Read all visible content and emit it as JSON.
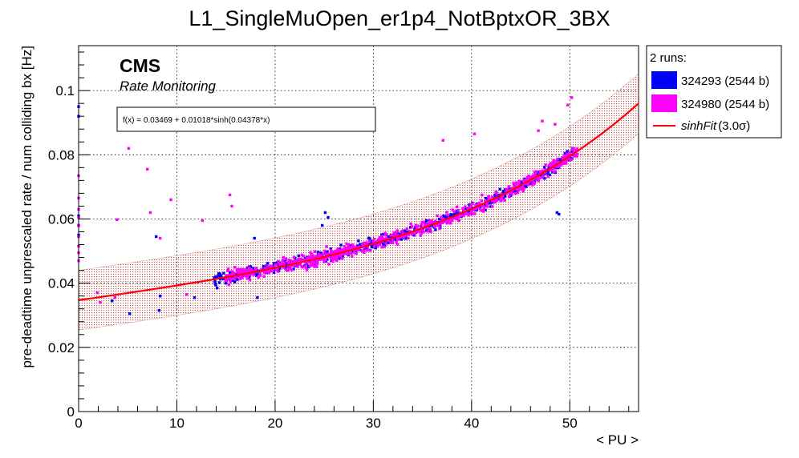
{
  "chart_data": {
    "type": "scatter",
    "title": "L1_SingleMuOpen_er1p4_NotBptxOR_3BX",
    "xlabel": "< PU >",
    "ylabel": "pre-deadtime unprescaled rate / num colliding bx [Hz]",
    "xlim": [
      0,
      57
    ],
    "ylim": [
      0,
      0.114
    ],
    "x_ticks": [
      0,
      10,
      20,
      30,
      40,
      50
    ],
    "x_tick_labels": [
      "0",
      "10",
      "20",
      "30",
      "40",
      "50"
    ],
    "y_ticks": [
      0,
      0.02,
      0.04,
      0.06,
      0.08,
      0.1
    ],
    "y_tick_labels": [
      "0",
      "0.02",
      "0.04",
      "0.06",
      "0.08",
      "0.1"
    ],
    "grid": true,
    "experiment_label": "CMS",
    "experiment_sublabel": "Rate Monitoring",
    "fit_box_text": "f(x) = 0.03469 + 0.01018*sinh(0.04378*x)",
    "fit": {
      "a": 0.03469,
      "b": 0.01018,
      "c": 0.04378,
      "x_range": [
        0,
        57
      ],
      "band_sigma": 3.0,
      "band_halfwidth": 0.0093
    },
    "legend": {
      "header": "2 runs:",
      "entries": [
        {
          "label": "324293 (2544 b)",
          "color": "#0000ff",
          "kind": "box"
        },
        {
          "label": "324980 (2544 b)",
          "color": "#ff00ff",
          "kind": "box"
        },
        {
          "label_fit": "sinhFit",
          "label_sigma": "(3.0σ)",
          "color": "#ff0000",
          "kind": "line"
        }
      ]
    },
    "series": [
      {
        "name": "324293 (2544 b)",
        "color": "#0000ff",
        "main_band": {
          "x_range": [
            13.8,
            50.6
          ],
          "count": 650,
          "spread": 0.0017
        },
        "extra_points": [
          [
            0.0,
            0.095
          ],
          [
            0.0,
            0.092
          ],
          [
            0.0,
            0.061
          ],
          [
            0.0,
            0.058
          ],
          [
            0.0,
            0.055
          ],
          [
            3.4,
            0.0345
          ],
          [
            5.2,
            0.0305
          ],
          [
            7.9,
            0.0545
          ],
          [
            8.2,
            0.0315
          ],
          [
            8.3,
            0.036
          ],
          [
            11.8,
            0.0355
          ],
          [
            14.1,
            0.0385
          ],
          [
            17.9,
            0.054
          ],
          [
            18.2,
            0.0355
          ],
          [
            24.8,
            0.058
          ],
          [
            25.1,
            0.062
          ],
          [
            25.4,
            0.0605
          ],
          [
            48.7,
            0.062
          ],
          [
            48.9,
            0.0615
          ]
        ]
      },
      {
        "name": "324980 (2544 b)",
        "color": "#ff00ff",
        "main_band": {
          "x_range": [
            14.9,
            50.8
          ],
          "count": 700,
          "spread": 0.002
        },
        "extra_points": [
          [
            0.0,
            0.0735
          ],
          [
            0.0,
            0.0665
          ],
          [
            0.0,
            0.063
          ],
          [
            0.0,
            0.0605
          ],
          [
            0.0,
            0.058
          ],
          [
            0.0,
            0.0545
          ],
          [
            0.0,
            0.0515
          ],
          [
            0.0,
            0.0495
          ],
          [
            0.0,
            0.047
          ],
          [
            1.9,
            0.037
          ],
          [
            2.2,
            0.034
          ],
          [
            3.7,
            0.0355
          ],
          [
            3.9,
            0.0598
          ],
          [
            5.1,
            0.082
          ],
          [
            7.0,
            0.0755
          ],
          [
            7.3,
            0.062
          ],
          [
            8.3,
            0.054
          ],
          [
            9.4,
            0.066
          ],
          [
            11.0,
            0.0365
          ],
          [
            12.6,
            0.0595
          ],
          [
            15.4,
            0.0675
          ],
          [
            15.6,
            0.064
          ],
          [
            37.1,
            0.0845
          ],
          [
            40.3,
            0.0865
          ],
          [
            46.8,
            0.0875
          ],
          [
            47.2,
            0.0905
          ],
          [
            48.5,
            0.0895
          ],
          [
            49.8,
            0.0955
          ],
          [
            50.2,
            0.0978
          ]
        ]
      }
    ]
  }
}
